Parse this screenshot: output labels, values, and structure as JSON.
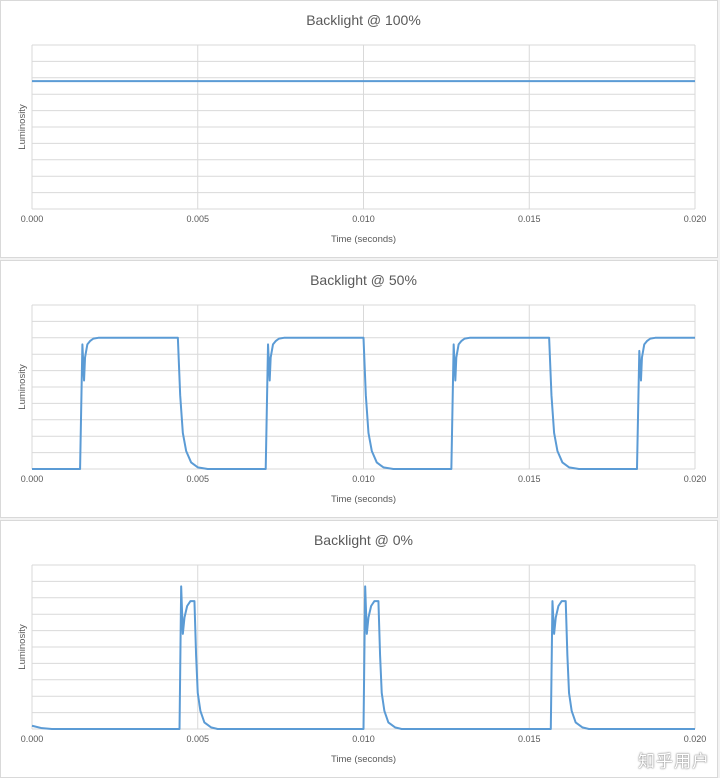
{
  "chart_data": [
    {
      "type": "line",
      "title": "Backlight @ 100%",
      "xlabel": "Time (seconds)",
      "ylabel": "Luminosity",
      "xlim": [
        0,
        0.02
      ],
      "ylim": [
        0,
        10
      ],
      "x_ticks": [
        "0.000",
        "0.005",
        "0.010",
        "0.015",
        "0.020"
      ],
      "grid": true,
      "series": [
        {
          "color": "#5b9bd5",
          "x": [
            0,
            0.002,
            0.004,
            0.006,
            0.008,
            0.01,
            0.012,
            0.014,
            0.016,
            0.018,
            0.02
          ],
          "y": [
            7.8,
            7.8,
            7.8,
            7.8,
            7.8,
            7.8,
            7.8,
            7.8,
            7.8,
            7.8,
            7.8
          ]
        }
      ]
    },
    {
      "type": "line",
      "title": "Backlight @ 50%",
      "xlabel": "Time (seconds)",
      "ylabel": "Luminosity",
      "xlim": [
        0,
        0.02
      ],
      "ylim": [
        0,
        10
      ],
      "x_ticks": [
        "0.000",
        "0.005",
        "0.010",
        "0.015",
        "0.020"
      ],
      "grid": true,
      "series": [
        {
          "color": "#5b9bd5",
          "x": [
            0,
            0.00145,
            0.00152,
            0.00157,
            0.0016,
            0.00167,
            0.00175,
            0.00185,
            0.002,
            0.0024,
            0.0044,
            0.00447,
            0.00455,
            0.00465,
            0.0048,
            0.005,
            0.0053,
            0.0056,
            0.00705,
            0.00712,
            0.00717,
            0.0072,
            0.00727,
            0.00735,
            0.00745,
            0.0076,
            0.008,
            0.01,
            0.01007,
            0.01015,
            0.01025,
            0.0104,
            0.0106,
            0.0109,
            0.0112,
            0.01265,
            0.01272,
            0.01277,
            0.0128,
            0.01287,
            0.01295,
            0.01305,
            0.0132,
            0.0136,
            0.0156,
            0.01567,
            0.01575,
            0.01585,
            0.016,
            0.0162,
            0.0165,
            0.0168,
            0.01825,
            0.01832,
            0.01837,
            0.0184,
            0.01847,
            0.01855,
            0.01865,
            0.0188,
            0.0192,
            0.02
          ],
          "y": [
            0,
            0,
            7.6,
            5.4,
            6.8,
            7.6,
            7.8,
            7.95,
            8,
            8,
            8,
            4.5,
            2.2,
            1.1,
            0.4,
            0.1,
            0,
            0,
            0,
            7.6,
            5.4,
            6.8,
            7.6,
            7.8,
            7.95,
            8,
            8,
            8,
            4.5,
            2.2,
            1.1,
            0.4,
            0.1,
            0,
            0,
            0,
            7.6,
            5.4,
            6.8,
            7.6,
            7.8,
            7.95,
            8,
            8,
            8,
            4.5,
            2.2,
            1.1,
            0.4,
            0.1,
            0,
            0,
            0,
            7.2,
            5.4,
            6.8,
            7.6,
            7.8,
            7.95,
            8,
            8,
            8
          ]
        }
      ]
    },
    {
      "type": "line",
      "title": "Backlight @ 0%",
      "xlabel": "Time (seconds)",
      "ylabel": "Luminosity",
      "xlim": [
        0,
        0.02
      ],
      "ylim": [
        0,
        10
      ],
      "x_ticks": [
        "0.000",
        "0.005",
        "0.010",
        "0.015",
        "0.020"
      ],
      "grid": true,
      "series": [
        {
          "color": "#5b9bd5",
          "x": [
            0,
            0.0003,
            0.0006,
            0.00445,
            0.0045,
            0.00455,
            0.0046,
            0.00468,
            0.00478,
            0.0049,
            0.00495,
            0.005,
            0.00508,
            0.0052,
            0.0054,
            0.0056,
            0.006,
            0.01,
            0.01005,
            0.0101,
            0.01015,
            0.01023,
            0.01033,
            0.01045,
            0.0105,
            0.01055,
            0.01063,
            0.01075,
            0.01095,
            0.01115,
            0.0115,
            0.01565,
            0.0157,
            0.01575,
            0.0158,
            0.01588,
            0.01598,
            0.0161,
            0.01615,
            0.0162,
            0.01628,
            0.0164,
            0.0166,
            0.0168,
            0.0172,
            0.02
          ],
          "y": [
            0.2,
            0.05,
            0,
            0,
            8.7,
            5.8,
            6.8,
            7.5,
            7.8,
            7.8,
            4.5,
            2.2,
            1.1,
            0.4,
            0.1,
            0,
            0,
            0,
            8.7,
            5.8,
            6.8,
            7.5,
            7.8,
            7.8,
            4.5,
            2.2,
            1.1,
            0.4,
            0.1,
            0,
            0,
            0,
            7.8,
            5.8,
            6.8,
            7.5,
            7.8,
            7.8,
            4.5,
            2.2,
            1.1,
            0.4,
            0.1,
            0,
            0,
            0
          ]
        }
      ]
    }
  ],
  "watermark": "知乎用户"
}
